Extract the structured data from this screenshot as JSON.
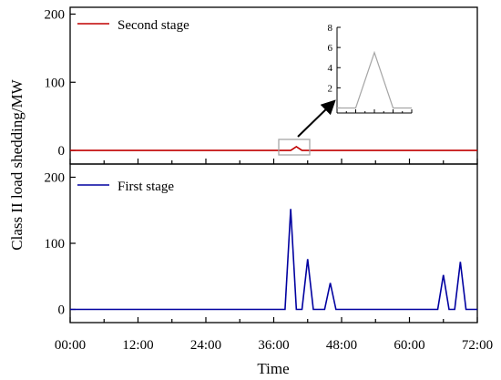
{
  "chart_data": [
    {
      "type": "line",
      "panel": "top",
      "legend_position": "top-left",
      "xlabel": "",
      "ylabel": "",
      "xlim": [
        0,
        72
      ],
      "ylim": [
        -20,
        210
      ],
      "yticks": [
        0,
        100,
        200
      ],
      "grid": false,
      "series": [
        {
          "name": "Second stage",
          "color": "#c00000",
          "x": [
            0,
            39,
            40,
            41,
            72
          ],
          "y": [
            0,
            0,
            5.5,
            0,
            0
          ]
        }
      ],
      "inset": {
        "type": "line",
        "ylim": [
          -0.5,
          8
        ],
        "yticks": [
          0,
          2,
          4,
          6,
          8
        ],
        "color": "#a6a6a6",
        "x": [
          0,
          1,
          2,
          3,
          4
        ],
        "y": [
          0,
          0,
          5.5,
          0,
          0
        ]
      }
    },
    {
      "type": "line",
      "panel": "bottom",
      "legend_position": "top-left",
      "xlabel": "Time",
      "ylabel": "Class II load shedding/MW",
      "xlim": [
        0,
        72
      ],
      "ylim": [
        -20,
        220
      ],
      "yticks": [
        0,
        100,
        200
      ],
      "xtick_labels": [
        "00:00",
        "12:00",
        "24:00",
        "36:00",
        "48:00",
        "60:00",
        "72:00"
      ],
      "grid": false,
      "series": [
        {
          "name": "First stage",
          "color": "#0000a0",
          "x": [
            0,
            38,
            39,
            40,
            41,
            42,
            43,
            45,
            46,
            47,
            65,
            66,
            67,
            68,
            69,
            70,
            72
          ],
          "y": [
            0,
            0,
            152,
            0,
            0,
            76,
            0,
            0,
            40,
            0,
            0,
            52,
            0,
            0,
            72,
            0,
            0
          ]
        }
      ]
    }
  ]
}
